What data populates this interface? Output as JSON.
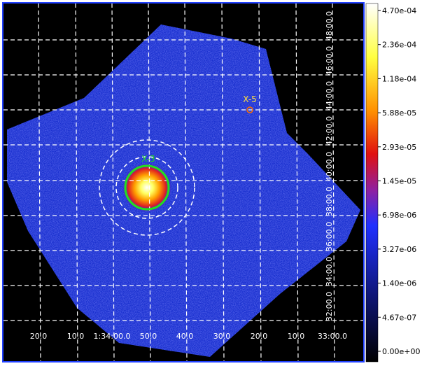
{
  "colorbar": {
    "labels": [
      "4.70e-04",
      "2.36e-04",
      "1.18e-04",
      "5.88e-05",
      "2.93e-05",
      "1.45e-05",
      "6.98e-06",
      "3.27e-06",
      "1.40e-06",
      "4.67e-07",
      "0.00e+00"
    ]
  },
  "grid": {
    "x_labels": [
      "20.0",
      "10.0",
      "1:34:00.0",
      "50.0",
      "40.0",
      "30.0",
      "20.0",
      "10.0",
      "33:00.0"
    ],
    "y_labels": [
      "48:00.0",
      "46:00.0",
      "44:00.0",
      "42:00.0",
      "40:00.0",
      "38:00.0",
      "36:00.0",
      "34:00.0",
      "32:00.0"
    ]
  },
  "sources": [
    {
      "label": "X-5"
    },
    {
      "label": "X-3"
    }
  ]
}
